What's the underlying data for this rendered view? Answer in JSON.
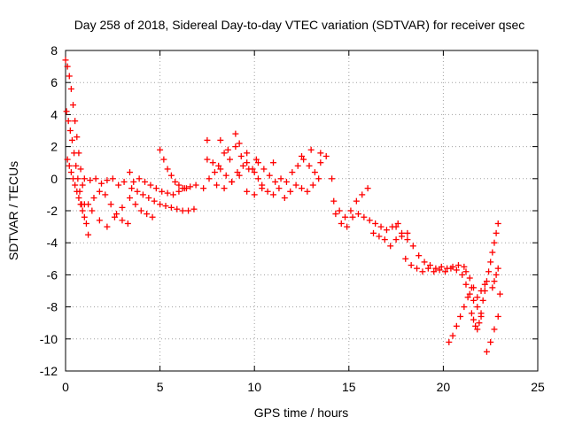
{
  "chart_data": {
    "type": "scatter",
    "title": "Day 258 of 2018, Sidereal Day-to-day VTEC variation (SDTVAR) for receiver qsec",
    "xlabel": "GPS time / hours",
    "ylabel": "SDTVAR / TECUs",
    "xlim": [
      0,
      25
    ],
    "ylim": [
      -12,
      8
    ],
    "xticks": [
      0,
      5,
      10,
      15,
      20,
      25
    ],
    "xtick_labels": [
      "0",
      "5",
      "10",
      "15",
      "20",
      "25"
    ],
    "yticks": [
      -12,
      -10,
      -8,
      -6,
      -4,
      -2,
      0,
      2,
      4,
      6,
      8
    ],
    "ytick_labels": [
      "-12",
      "-10",
      "-8",
      "-6",
      "-4",
      "-2",
      "0",
      "2",
      "4",
      "6",
      "8"
    ],
    "grid": true,
    "marker": "+",
    "series": [
      {
        "name": "SDTVAR",
        "color": "#ff0000",
        "x": [
          0.0,
          0.1,
          0.2,
          0.3,
          0.4,
          0.5,
          0.6,
          0.7,
          0.8,
          0.9,
          1.0,
          1.1,
          1.2,
          0.05,
          0.15,
          0.25,
          0.35,
          0.45,
          0.55,
          0.65,
          0.75,
          0.85,
          0.1,
          0.2,
          0.3,
          0.4,
          0.5,
          0.6,
          0.7,
          0.8,
          0.9,
          1.0,
          1.0,
          1.3,
          1.6,
          1.9,
          2.2,
          2.5,
          2.8,
          3.1,
          3.4,
          1.2,
          1.5,
          1.8,
          2.1,
          2.4,
          2.7,
          3.0,
          3.3,
          1.4,
          1.8,
          2.2,
          2.6,
          3.0,
          3.4,
          3.5,
          3.8,
          4.1,
          4.4,
          4.7,
          5.0,
          5.3,
          5.6,
          5.9,
          6.2,
          6.5,
          6.8,
          3.6,
          3.9,
          4.2,
          4.5,
          4.8,
          5.1,
          5.4,
          5.7,
          6.0,
          6.3,
          6.6,
          6.9,
          3.7,
          4.0,
          4.3,
          4.6,
          5.0,
          5.2,
          5.4,
          5.6,
          5.8,
          6.0,
          6.2,
          6.4,
          7.3,
          7.6,
          7.9,
          8.2,
          8.5,
          8.8,
          9.1,
          9.4,
          9.7,
          10.0,
          7.5,
          7.8,
          8.1,
          8.4,
          8.7,
          9.0,
          9.3,
          9.6,
          9.9,
          10.2,
          8.0,
          8.4,
          8.8,
          9.2,
          9.6,
          10.0,
          10.4,
          10.2,
          10.5,
          10.8,
          11.1,
          11.4,
          11.7,
          12.0,
          12.3,
          12.6,
          12.9,
          13.2,
          13.5,
          13.8,
          14.1,
          10.4,
          10.7,
          11.0,
          11.3,
          11.6,
          11.9,
          12.2,
          12.5,
          12.8,
          13.1,
          13.4,
          7.5,
          8.2,
          8.6,
          9.0,
          9.2,
          9.6,
          10.1,
          11.0,
          12.5,
          13.0,
          13.5,
          14.2,
          14.5,
          14.8,
          15.1,
          15.4,
          15.7,
          16.0,
          14.3,
          14.6,
          14.9,
          15.2,
          15.5,
          15.8,
          16.1,
          16.4,
          16.7,
          17.0,
          17.3,
          17.6,
          16.3,
          16.6,
          16.9,
          17.2,
          17.5,
          17.8,
          18.1,
          17.5,
          17.8,
          18.1,
          18.4,
          18.7,
          19.0,
          19.3,
          19.6,
          19.9,
          20.2,
          20.5,
          20.8,
          21.1,
          18.0,
          18.3,
          18.6,
          18.9,
          19.2,
          19.5,
          19.8,
          20.1,
          20.4,
          20.7,
          20.3,
          20.5,
          20.7,
          20.9,
          21.1,
          21.3,
          21.5,
          21.0,
          21.2,
          21.4,
          21.6,
          21.8,
          22.0,
          21.2,
          21.4,
          21.6,
          21.8,
          22.0,
          22.2,
          21.5,
          21.6,
          21.7,
          21.8,
          21.9,
          22.0,
          22.1,
          22.2,
          22.3,
          22.4,
          22.5,
          22.6,
          22.7,
          22.8,
          22.9,
          22.3,
          22.5,
          22.7,
          22.9,
          22.6,
          22.7,
          22.8,
          22.9,
          23.0
        ],
        "y": [
          7.4,
          7.0,
          6.4,
          5.6,
          4.6,
          3.6,
          2.6,
          1.6,
          0.6,
          -0.4,
          -1.6,
          -2.8,
          -3.5,
          4.2,
          3.6,
          3.0,
          2.4,
          1.6,
          0.8,
          0.0,
          -0.8,
          -1.6,
          1.2,
          0.8,
          0.4,
          0.0,
          -0.4,
          -0.8,
          -1.2,
          -1.6,
          -2.0,
          -2.4,
          0.0,
          -0.1,
          0.0,
          -0.3,
          -0.1,
          0.0,
          -0.4,
          -0.2,
          0.4,
          -1.6,
          -1.2,
          -0.8,
          -1.0,
          -1.6,
          -2.2,
          -2.6,
          -2.8,
          -2.0,
          -2.6,
          -3.0,
          -2.4,
          -1.8,
          -1.2,
          -0.6,
          -0.8,
          -1.0,
          -1.2,
          -1.4,
          -1.6,
          -1.7,
          -1.8,
          -1.9,
          -2.0,
          -2.0,
          -1.9,
          -0.2,
          0.0,
          -0.2,
          -0.4,
          -0.6,
          -0.8,
          -0.9,
          -1.0,
          -0.8,
          -0.6,
          -0.5,
          -0.4,
          -1.6,
          -2.0,
          -2.2,
          -2.4,
          1.8,
          1.2,
          0.6,
          0.2,
          -0.2,
          -0.4,
          -0.6,
          -0.6,
          -0.6,
          0.0,
          0.4,
          0.6,
          0.2,
          -0.2,
          0.4,
          0.8,
          0.6,
          0.4,
          1.2,
          1.0,
          0.8,
          1.6,
          1.2,
          2.0,
          1.4,
          1.0,
          0.6,
          0.0,
          -0.4,
          -0.6,
          -0.2,
          0.2,
          -0.8,
          -1.0,
          -0.6,
          1.0,
          0.6,
          0.2,
          -0.2,
          0.0,
          -0.2,
          0.4,
          0.8,
          1.2,
          0.8,
          0.4,
          1.0,
          1.4,
          0.0,
          -0.4,
          -0.8,
          -1.0,
          -0.6,
          -1.2,
          -0.8,
          -0.4,
          -0.6,
          -0.8,
          -0.4,
          0.0,
          2.4,
          2.4,
          1.8,
          2.8,
          2.2,
          1.6,
          1.2,
          1.0,
          1.4,
          1.8,
          1.6,
          -1.4,
          -2.0,
          -2.4,
          -2.0,
          -1.4,
          -1.0,
          -0.6,
          -2.2,
          -2.8,
          -3.0,
          -2.4,
          -2.2,
          -2.4,
          -2.6,
          -2.8,
          -3.0,
          -3.2,
          -3.0,
          -2.8,
          -3.4,
          -3.6,
          -3.8,
          -4.2,
          -3.8,
          -3.6,
          -3.4,
          -3.0,
          -3.4,
          -3.8,
          -4.2,
          -4.8,
          -5.2,
          -5.4,
          -5.6,
          -5.5,
          -5.6,
          -5.5,
          -5.4,
          -5.5,
          -5.0,
          -5.4,
          -5.6,
          -5.8,
          -5.6,
          -5.8,
          -5.7,
          -5.8,
          -5.6,
          -5.7,
          -10.2,
          -9.8,
          -9.2,
          -8.6,
          -8.0,
          -7.4,
          -6.8,
          -6.0,
          -6.6,
          -7.2,
          -7.6,
          -8.0,
          -8.4,
          -5.8,
          -6.2,
          -6.8,
          -7.4,
          -7.0,
          -6.6,
          -8.4,
          -8.8,
          -9.2,
          -9.4,
          -9.0,
          -8.6,
          -7.6,
          -7.0,
          -6.4,
          -5.8,
          -5.2,
          -4.6,
          -4.0,
          -3.4,
          -2.8,
          -10.8,
          -10.2,
          -9.4,
          -8.6,
          -6.8,
          -6.4,
          -6.0,
          -5.6,
          -7.2
        ]
      }
    ]
  }
}
